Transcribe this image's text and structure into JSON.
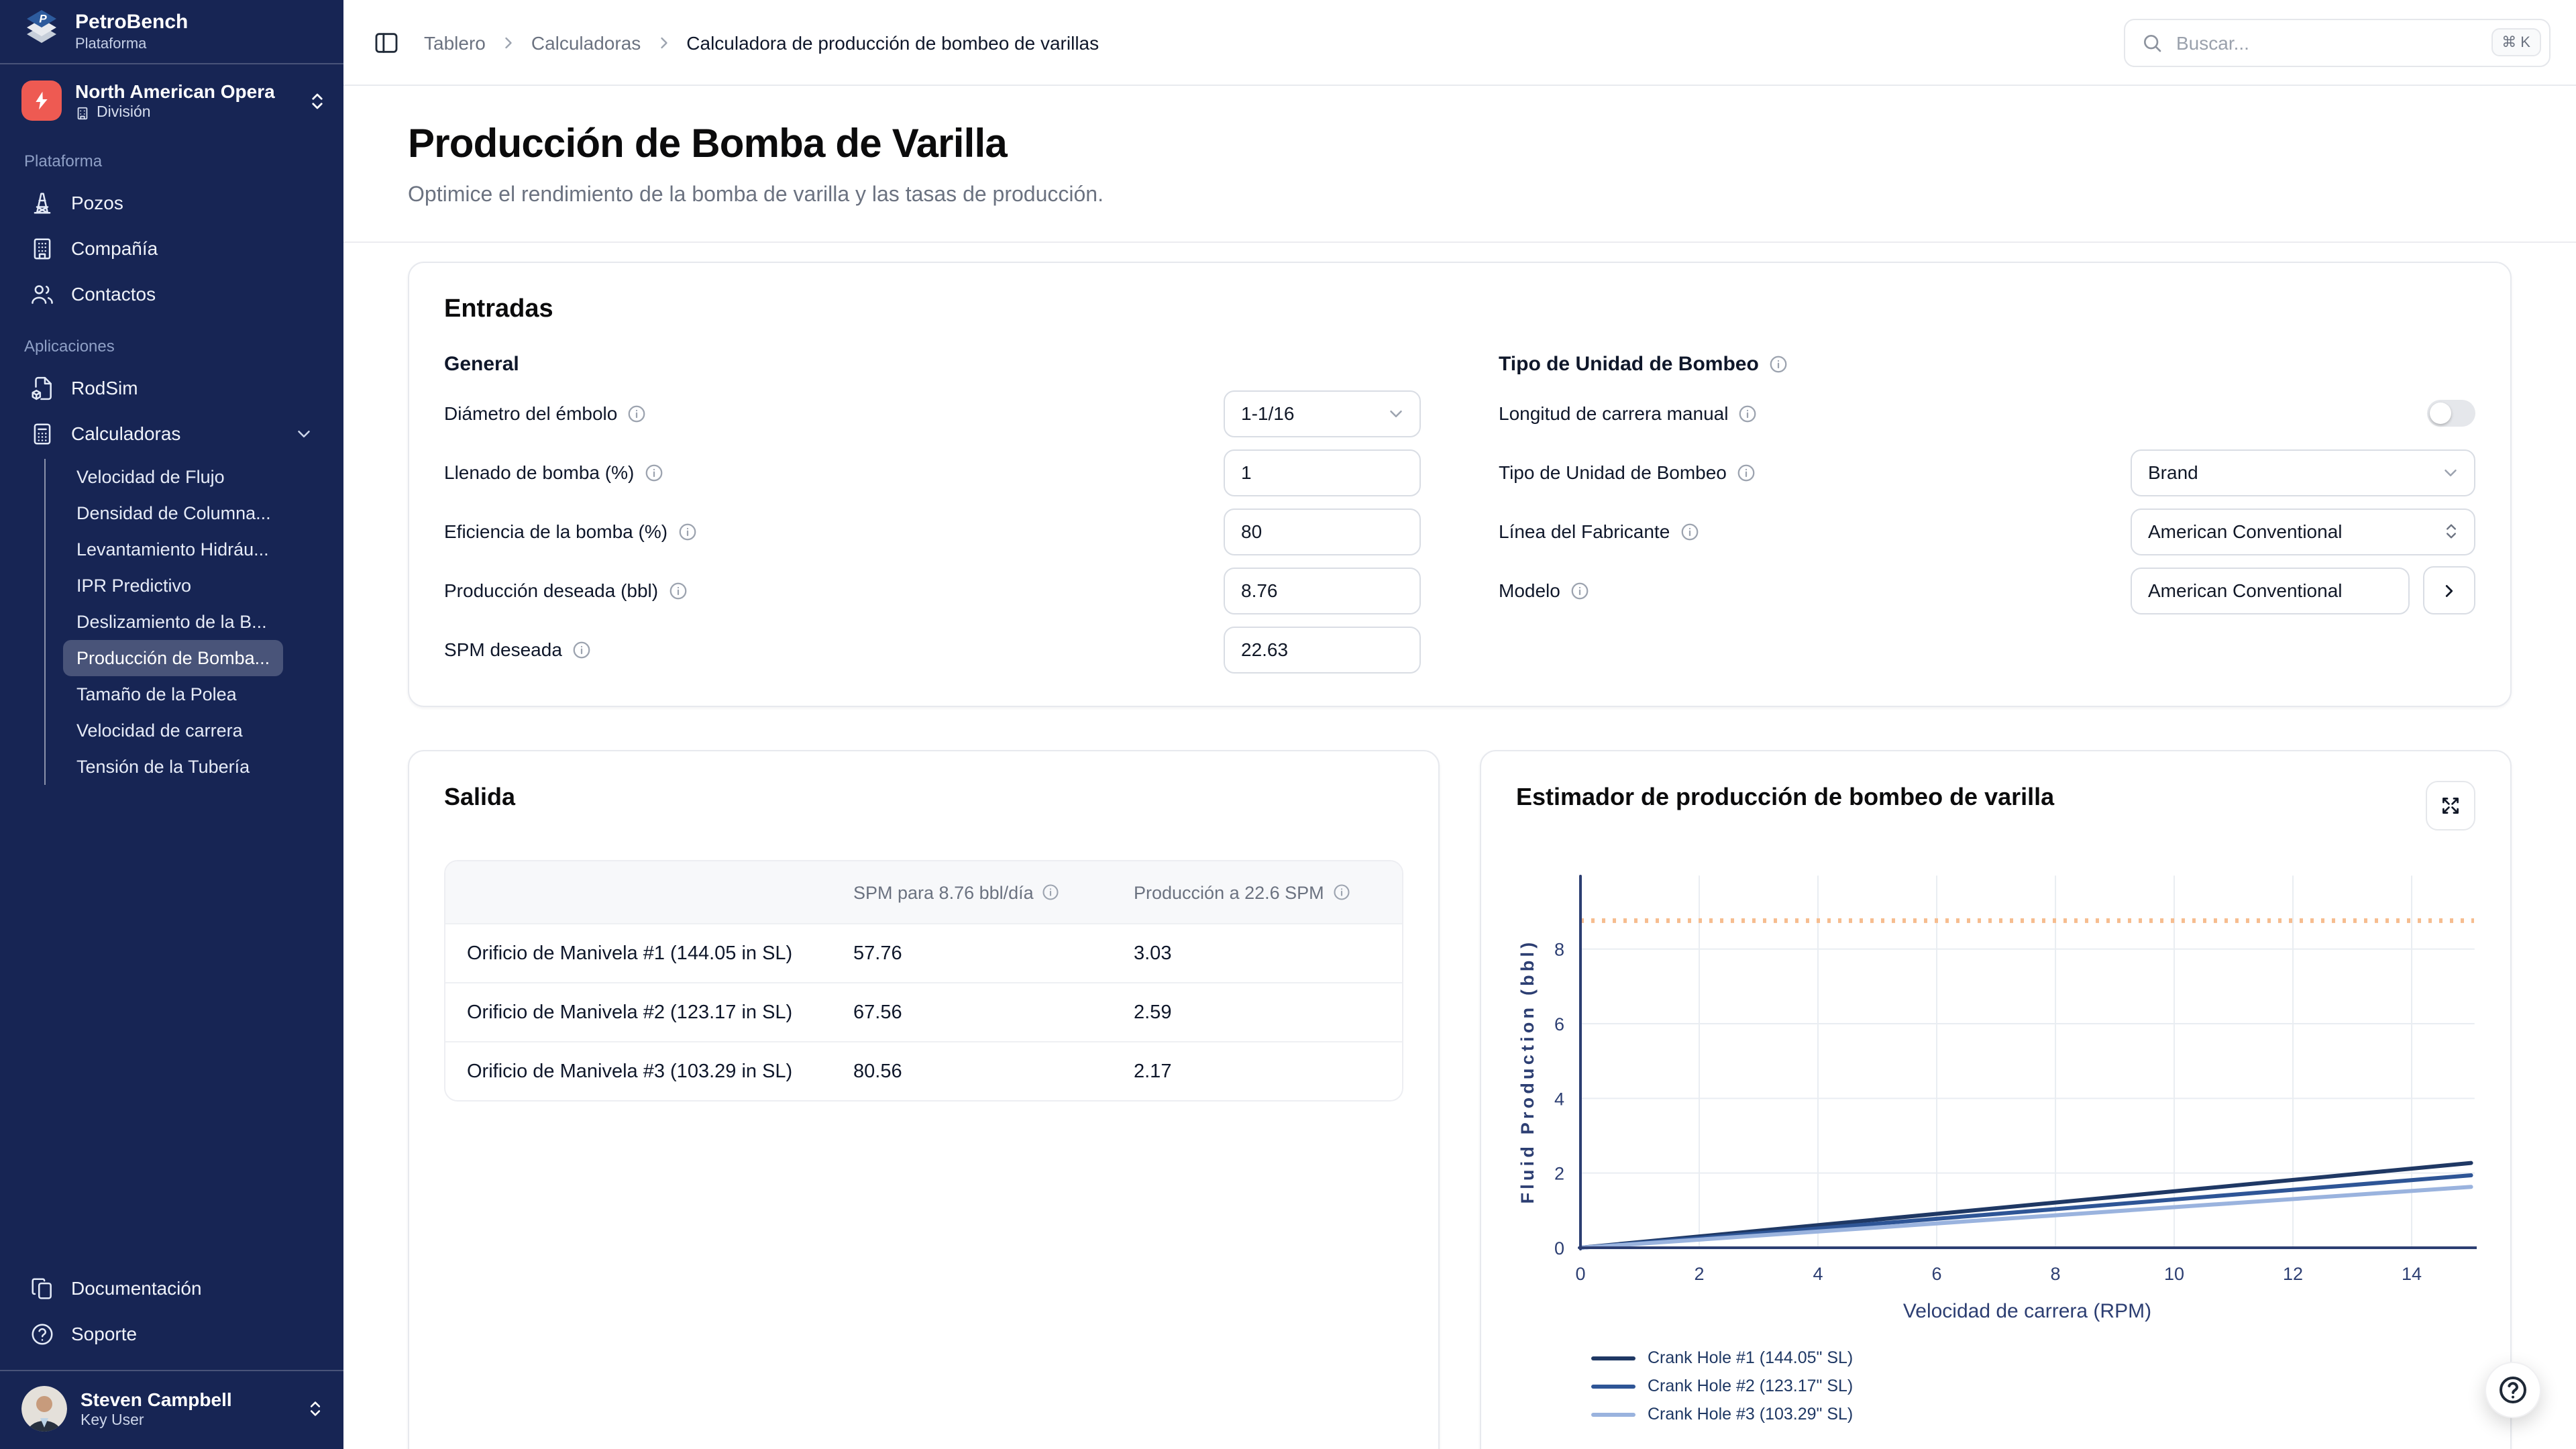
{
  "sidebar": {
    "logo": {
      "title": "PetroBench",
      "subtitle": "Plataforma",
      "icon": "layers-logo-icon"
    },
    "org": {
      "name": "North American Opera",
      "role": "División",
      "icon": "lightning-bolt-icon"
    },
    "sections": [
      {
        "label": "Plataforma",
        "items": [
          {
            "label": "Pozos",
            "icon": "derrick-icon"
          },
          {
            "label": "Compañía",
            "icon": "building-icon"
          },
          {
            "label": "Contactos",
            "icon": "users-icon"
          }
        ]
      },
      {
        "label": "Aplicaciones",
        "items": [
          {
            "label": "RodSim",
            "icon": "file-box-icon"
          },
          {
            "label": "Calculadoras",
            "icon": "calculator-icon"
          }
        ]
      }
    ],
    "submenu": [
      "Velocidad de Flujo",
      "Densidad de Columna...",
      "Levantamiento Hidráu...",
      "IPR Predictivo",
      "Deslizamiento de la B...",
      "Producción de Bomba...",
      "Tamaño de la Polea",
      "Velocidad de carrera",
      "Tensión de la Tubería"
    ],
    "submenu_selected": "Producción de Bomba...",
    "footer_items": [
      {
        "label": "Documentación",
        "icon": "copy-docs-icon"
      },
      {
        "label": "Soporte",
        "icon": "help-circle-icon"
      }
    ],
    "user": {
      "name": "Steven Campbell",
      "role": "Key User"
    }
  },
  "header": {
    "breadcrumbs": [
      "Tablero",
      "Calculadoras",
      "Calculadora de producción de bombeo de varillas"
    ],
    "search": {
      "placeholder": "Buscar...",
      "shortcut": "⌘ K"
    }
  },
  "page": {
    "title": "Producción de Bomba de Varilla",
    "subtitle": "Optimice el rendimiento de la bomba de varilla y las tasas de producción."
  },
  "inputs_card": {
    "title": "Entradas",
    "general": {
      "heading": "General",
      "fields": [
        {
          "label": "Diámetro del émbolo",
          "value": "1-1/16",
          "control": "select"
        },
        {
          "label": "Llenado de bomba (%)",
          "value": "1",
          "control": "input"
        },
        {
          "label": "Eficiencia de la bomba (%)",
          "value": "80",
          "control": "input"
        },
        {
          "label": "Producción deseada (bbl)",
          "value": "8.76",
          "control": "input"
        },
        {
          "label": "SPM deseada",
          "value": "22.63",
          "control": "input"
        }
      ]
    },
    "pumping": {
      "heading": "Tipo de Unidad de Bombeo",
      "fields": [
        {
          "label": "Longitud de carrera manual",
          "control": "toggle",
          "value": "off"
        },
        {
          "label": "Tipo de Unidad de Bombeo",
          "value": "Brand",
          "control": "select"
        },
        {
          "label": "Línea del Fabricante",
          "value": "American Conventional",
          "control": "select-updown"
        },
        {
          "label": "Modelo",
          "value": "American Conventional",
          "control": "input-with-button"
        }
      ]
    }
  },
  "output_card": {
    "title": "Salida",
    "table": {
      "headers": [
        "",
        "SPM para 8.76 bbl/día",
        "Producción a 22.6 SPM"
      ],
      "rows": [
        [
          "Orificio de Manivela #1 (144.05 in SL)",
          "57.76",
          "3.03"
        ],
        [
          "Orificio de Manivela #2 (123.17 in SL)",
          "67.56",
          "2.59"
        ],
        [
          "Orificio de Manivela #3 (103.29 in SL)",
          "80.56",
          "2.17"
        ]
      ]
    }
  },
  "chart_card": {
    "title": "Estimador de producción de bombeo de varilla",
    "expand_icon": "expand-arrows-icon"
  },
  "chart_data": {
    "type": "line",
    "title": "Estimador de producción de bombeo de varilla",
    "xlabel": "Velocidad de carrera (RPM)",
    "ylabel": "Fluid Production (bbl)",
    "xlim": [
      0,
      15.05
    ],
    "ylim": [
      0,
      9.45
    ],
    "xticks": [
      0,
      2,
      4,
      6,
      8,
      10,
      12,
      14
    ],
    "yticks": [
      0,
      2,
      4,
      6,
      8
    ],
    "grid": true,
    "axis_color": "#2c3e72",
    "grid_color": "#e9edf2",
    "target_line": {
      "value": 8.76,
      "color": "#f6bd8f",
      "style": "dotted",
      "meaning": "Producción deseada (bbl)"
    },
    "series": [
      {
        "name": "Crank Hole #1 (144.05\" SL)",
        "color": "#1f3864",
        "x": [
          0,
          15
        ],
        "y": [
          0,
          2.27
        ]
      },
      {
        "name": "Crank Hole #2 (123.17\" SL)",
        "color": "#2e5596",
        "x": [
          0,
          15
        ],
        "y": [
          0,
          1.94
        ]
      },
      {
        "name": "Crank Hole #3 (103.29\" SL)",
        "color": "#9ab3de",
        "x": [
          0,
          15
        ],
        "y": [
          0,
          1.63
        ]
      }
    ],
    "legend_position": "bottom-left"
  },
  "colors": {
    "sidebar_bg": "#172554",
    "org_icon_bg": "#ee5a52",
    "border": "#e7e9ee",
    "muted_text": "#6b7280",
    "chart_navy": "#1f3864",
    "target_orange": "#f6bd8f"
  }
}
